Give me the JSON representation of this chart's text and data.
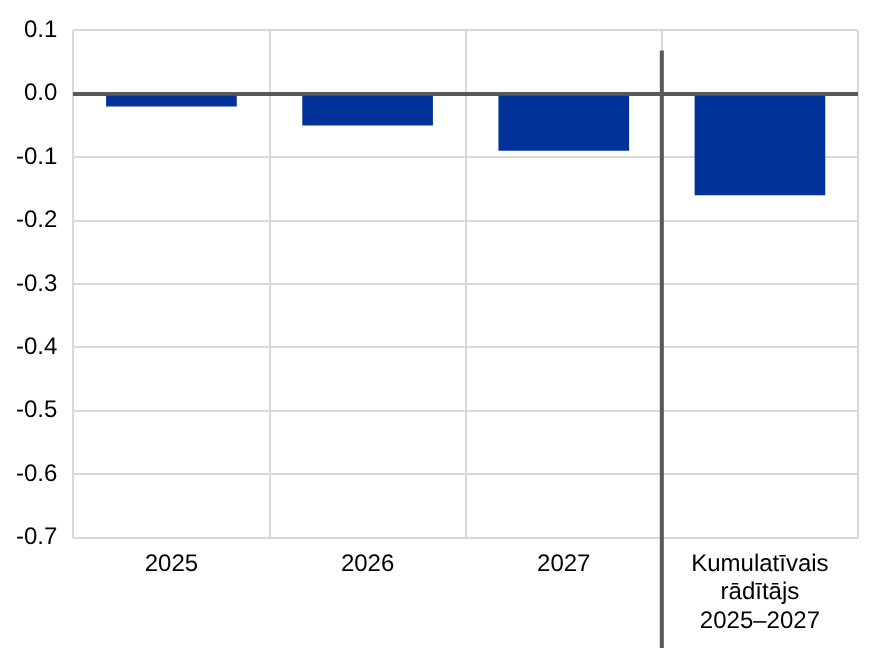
{
  "chart_data": {
    "type": "bar",
    "categories": [
      "2025",
      "2026",
      "2027",
      "Kumulatīvais rādītājs 2025–2027"
    ],
    "values": [
      -0.02,
      -0.05,
      -0.09,
      -0.16
    ],
    "color": "#003299",
    "ylim": [
      -0.7,
      0.1
    ],
    "yticks": [
      {
        "value": 0.1,
        "label": "0.1"
      },
      {
        "value": 0,
        "label": "0.0"
      },
      {
        "value": -0.1,
        "label": "-0.1"
      },
      {
        "value": -0.2,
        "label": "-0.2"
      },
      {
        "value": -0.3,
        "label": "-0.3"
      },
      {
        "value": -0.4,
        "label": "-0.4"
      },
      {
        "value": -0.5,
        "label": "-0.5"
      },
      {
        "value": -0.6,
        "label": "-0.6"
      },
      {
        "value": -0.7,
        "label": "-0.7"
      }
    ],
    "grid": true
  }
}
